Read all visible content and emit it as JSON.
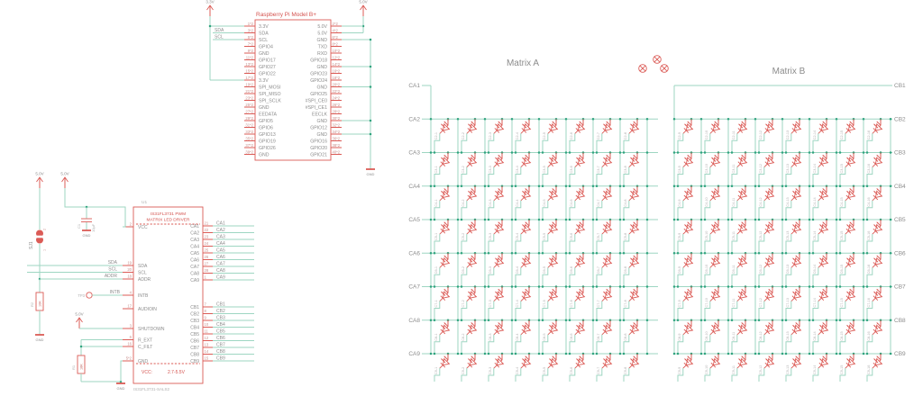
{
  "power": {
    "v33": "3.3V",
    "v50": "5.0V",
    "gnd": "GND"
  },
  "nets": {
    "sda": "SDA",
    "scl": "SCL",
    "addr": "ADDR",
    "intb": "INTB"
  },
  "pi": {
    "ref_title": "Raspberry Pi Model B+",
    "left_pins": [
      {
        "num": "1*2",
        "name": "3.3V"
      },
      {
        "num": "3*2",
        "name": "SDA"
      },
      {
        "num": "5*2",
        "name": "SCL"
      },
      {
        "num": "7*2",
        "name": "GPIO4"
      },
      {
        "num": "9*2",
        "name": "GND"
      },
      {
        "num": "11*2",
        "name": "GPIO17"
      },
      {
        "num": "13*2",
        "name": "GPIO27"
      },
      {
        "num": "15*2",
        "name": "GPIO22"
      },
      {
        "num": "17*2",
        "name": "3.3V"
      },
      {
        "num": "19*2",
        "name": "SPI_MOSI"
      },
      {
        "num": "21*2",
        "name": "SPI_MISO"
      },
      {
        "num": "23*2",
        "name": "SPI_SCLK"
      },
      {
        "num": "25*2",
        "name": "GND"
      },
      {
        "num": "27*2",
        "name": "EEDATA"
      },
      {
        "num": "29*2",
        "name": "GPIO5"
      },
      {
        "num": "31*2",
        "name": "GPIO6"
      },
      {
        "num": "33*2",
        "name": "GPIO13"
      },
      {
        "num": "35*2",
        "name": "GPIO19"
      },
      {
        "num": "37*2",
        "name": "GPIO26"
      },
      {
        "num": "39*2",
        "name": "GND"
      }
    ],
    "right_pins": [
      {
        "num": "2*2",
        "name": "5.0V"
      },
      {
        "num": "4*2",
        "name": "5.0V"
      },
      {
        "num": "6*2",
        "name": "GND"
      },
      {
        "num": "8*2",
        "name": "TXD"
      },
      {
        "num": "10*2",
        "name": "RXD"
      },
      {
        "num": "12*2",
        "name": "GPIO18"
      },
      {
        "num": "14*2",
        "name": "GND"
      },
      {
        "num": "16*2",
        "name": "GPIO23"
      },
      {
        "num": "18*2",
        "name": "GPIO24"
      },
      {
        "num": "20*2",
        "name": "GND"
      },
      {
        "num": "22*2",
        "name": "GPIO25"
      },
      {
        "num": "24*2",
        "name": "#SPI_CE0"
      },
      {
        "num": "26*2",
        "name": "#SPI_CE1"
      },
      {
        "num": "28*2",
        "name": "EECLK"
      },
      {
        "num": "30*2",
        "name": "GND"
      },
      {
        "num": "32*2",
        "name": "GPIO12"
      },
      {
        "num": "34*2",
        "name": "GND"
      },
      {
        "num": "36*2",
        "name": "GPIO16"
      },
      {
        "num": "38*2",
        "name": "GPIO20"
      },
      {
        "num": "40*2",
        "name": "GPIO21"
      }
    ]
  },
  "driver": {
    "ref": "U1",
    "title1": "IS31FL3731 PWM",
    "title2": "MATRIX LED DRIVER",
    "vcc_label": "VCC:",
    "vcc_value": "2.7-5.5V",
    "part_number": "IS31FL3731-SALS2",
    "left_pins": [
      {
        "num": "2",
        "name": "VCC"
      },
      {
        "num": "19",
        "name": "SDA"
      },
      {
        "num": "20",
        "name": "SCL"
      },
      {
        "num": "18",
        "name": "ADDR"
      },
      {
        "num": "4",
        "name": "INTB"
      },
      {
        "num": "17",
        "name": "AUDIOIN"
      },
      {
        "num": "3",
        "name": "SHUTDOWN"
      },
      {
        "num": "6",
        "name": "R_EXT"
      },
      {
        "num": "16",
        "name": "C_FILT"
      },
      {
        "num": "5*2",
        "name": "GND"
      }
    ],
    "right_pins": [
      {
        "num": "21",
        "name": "CA1"
      },
      {
        "num": "22",
        "name": "CA2"
      },
      {
        "num": "23",
        "name": "CA3"
      },
      {
        "num": "24",
        "name": "CA4"
      },
      {
        "num": "25",
        "name": "CA5"
      },
      {
        "num": "26",
        "name": "CA6"
      },
      {
        "num": "27",
        "name": "CA7"
      },
      {
        "num": "28",
        "name": "CA8"
      },
      {
        "num": "1",
        "name": "CA9"
      },
      {
        "num": "7",
        "name": "CB1"
      },
      {
        "num": "8",
        "name": "CB2"
      },
      {
        "num": "9",
        "name": "CB3"
      },
      {
        "num": "10",
        "name": "CB4"
      },
      {
        "num": "11",
        "name": "CB5"
      },
      {
        "num": "12",
        "name": "CB6"
      },
      {
        "num": "13",
        "name": "CB7"
      },
      {
        "num": "14",
        "name": "CB8"
      },
      {
        "num": "15",
        "name": "CB9"
      }
    ]
  },
  "components": {
    "sj1": {
      "ref": "SJ1",
      "pin_top": "2",
      "pin_bottom": "1"
    },
    "c1": {
      "ref": "C1",
      "value": "10µF"
    },
    "r_addr": {
      "ref": "R2",
      "value": "10K"
    },
    "r_ext": {
      "ref": "R1",
      "value": "18K"
    },
    "tp": {
      "ref": "TP3"
    }
  },
  "matrix_a": {
    "title": "Matrix A",
    "row_labels": [
      "CA1",
      "CA2",
      "CA3",
      "CA4",
      "CA5",
      "CA6",
      "CA7",
      "CA8",
      "CA9"
    ],
    "led_labels": [
      [
        "C2-1",
        "C2-2",
        "C2-3",
        "C2-4",
        "C2-5",
        "C2-6",
        "C2-7",
        "C2-8"
      ],
      [
        "C3-1",
        "C3-2",
        "C3-3",
        "C3-4",
        "C3-5",
        "C3-6",
        "C3-7",
        "C3-8"
      ],
      [
        "C4-1",
        "C4-2",
        "C4-3",
        "C4-4",
        "C4-5",
        "C4-6",
        "C4-7",
        "C4-8"
      ],
      [
        "C5-1",
        "C5-2",
        "C5-3",
        "C5-4",
        "C5-5",
        "C5-6",
        "C5-7",
        "C5-8"
      ],
      [
        "C6-1",
        "C6-2",
        "C6-3",
        "C6-4",
        "C6-5",
        "C6-6",
        "C6-7",
        "C6-8"
      ],
      [
        "C7-1",
        "C7-2",
        "C7-3",
        "C7-4",
        "C7-5",
        "C7-6",
        "C7-7",
        "C7-8"
      ],
      [
        "C8-1",
        "C8-2",
        "C8-3",
        "C8-4",
        "C8-5",
        "C8-6",
        "C8-7",
        "C8-8"
      ],
      [
        "C9-1",
        "C9-2",
        "C9-3",
        "C9-4",
        "C9-5",
        "C9-6",
        "C9-7",
        "C9-8"
      ]
    ]
  },
  "matrix_b": {
    "title": "Matrix B",
    "row_labels": [
      "CB1",
      "CB2",
      "CB3",
      "CB4",
      "CB5",
      "CB6",
      "CB7",
      "CB8",
      "CB9"
    ],
    "led_labels": [
      [
        "C2-9",
        "C2-10",
        "C2-11",
        "C2-12",
        "C2-13",
        "C2-14",
        "C2-15",
        "C2-16"
      ],
      [
        "C3-9",
        "C3-10",
        "C3-11",
        "C3-12",
        "C3-13",
        "C3-14",
        "C3-15",
        "C3-16"
      ],
      [
        "C4-9",
        "C4-10",
        "C4-11",
        "C4-12",
        "C4-13",
        "C4-14",
        "C4-15",
        "C4-16"
      ],
      [
        "C5-9",
        "C5-10",
        "C5-11",
        "C5-12",
        "C5-13",
        "C5-14",
        "C5-15",
        "C5-16"
      ],
      [
        "C6-9",
        "C6-10",
        "C6-11",
        "C6-12",
        "C6-13",
        "C6-14",
        "C6-15",
        "C6-16"
      ],
      [
        "C7-9",
        "C7-10",
        "C7-11",
        "C7-12",
        "C7-13",
        "C7-14",
        "C7-15",
        "C7-16"
      ],
      [
        "C8-9",
        "C8-10",
        "C8-11",
        "C8-12",
        "C8-13",
        "C8-14",
        "C8-15",
        "C8-16"
      ],
      [
        "C9-9",
        "C9-10",
        "C9-11",
        "C9-12",
        "C9-13",
        "C9-14",
        "C9-15",
        "C9-16"
      ]
    ]
  },
  "markers": {
    "crossed_circle_count": 3
  }
}
